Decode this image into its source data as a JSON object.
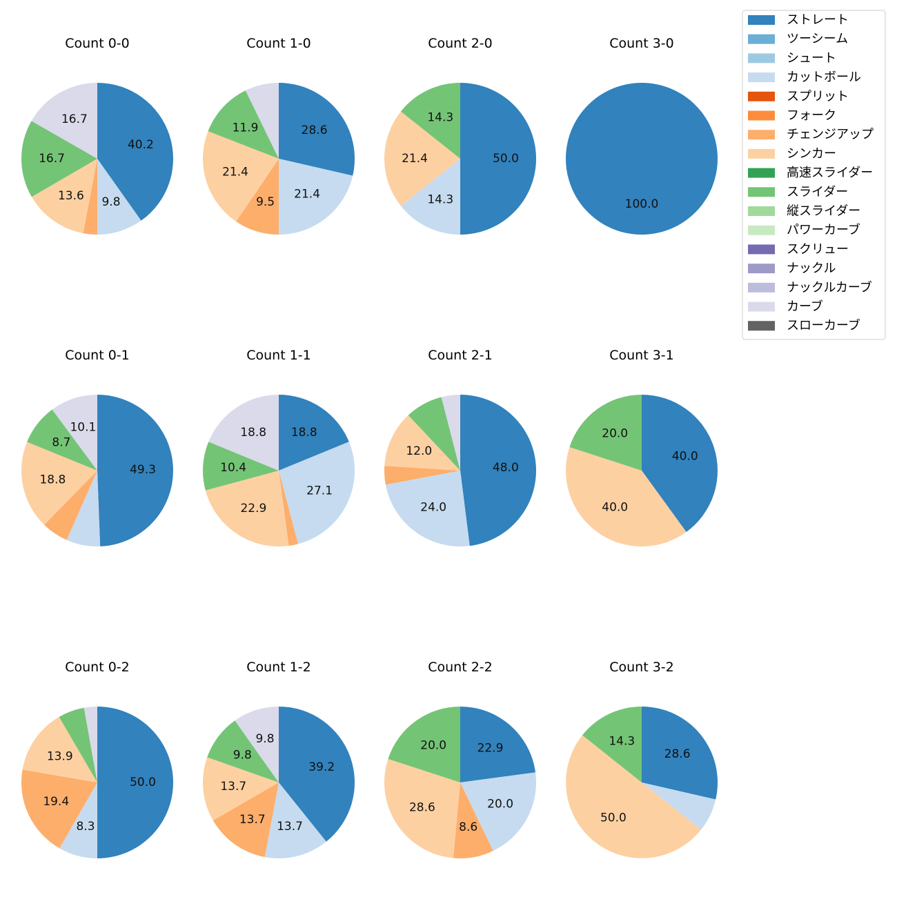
{
  "chart_data": {
    "type": "pie",
    "legend": {
      "placement": "top-right",
      "entries": [
        {
          "name": "ストレート",
          "color": "#3182bd"
        },
        {
          "name": "ツーシーム",
          "color": "#6baed6"
        },
        {
          "name": "シュート",
          "color": "#9ecae1"
        },
        {
          "name": "カットボール",
          "color": "#c6dbef"
        },
        {
          "name": "スプリット",
          "color": "#e6550d"
        },
        {
          "name": "フォーク",
          "color": "#fd8d3c"
        },
        {
          "name": "チェンジアップ",
          "color": "#fdae6b"
        },
        {
          "name": "シンカー",
          "color": "#fdd0a2"
        },
        {
          "name": "高速スライダー",
          "color": "#31a354"
        },
        {
          "name": "スライダー",
          "color": "#74c476"
        },
        {
          "name": "縦スライダー",
          "color": "#a1d99b"
        },
        {
          "name": "パワーカーブ",
          "color": "#c7e9c0"
        },
        {
          "name": "スクリュー",
          "color": "#756bb1"
        },
        {
          "name": "ナックル",
          "color": "#9e9ac8"
        },
        {
          "name": "ナックルカーブ",
          "color": "#bcbddc"
        },
        {
          "name": "カーブ",
          "color": "#dadaeb"
        },
        {
          "name": "スローカーブ",
          "color": "#636363"
        }
      ]
    },
    "pies": [
      {
        "title": "Count 0-0",
        "slices": [
          {
            "pitch": "ストレート",
            "value": 40.2,
            "label": "40.2"
          },
          {
            "pitch": "カットボール",
            "value": 9.8,
            "label": "9.8"
          },
          {
            "pitch": "チェンジアップ",
            "value": 3.0,
            "label": ""
          },
          {
            "pitch": "シンカー",
            "value": 13.6,
            "label": "13.6"
          },
          {
            "pitch": "スライダー",
            "value": 16.7,
            "label": "16.7"
          },
          {
            "pitch": "カーブ",
            "value": 16.7,
            "label": "16.7"
          }
        ]
      },
      {
        "title": "Count 1-0",
        "slices": [
          {
            "pitch": "ストレート",
            "value": 28.6,
            "label": "28.6"
          },
          {
            "pitch": "カットボール",
            "value": 21.4,
            "label": "21.4"
          },
          {
            "pitch": "チェンジアップ",
            "value": 9.5,
            "label": "9.5"
          },
          {
            "pitch": "シンカー",
            "value": 21.4,
            "label": "21.4"
          },
          {
            "pitch": "スライダー",
            "value": 11.9,
            "label": "11.9"
          },
          {
            "pitch": "カーブ",
            "value": 7.2,
            "label": ""
          }
        ]
      },
      {
        "title": "Count 2-0",
        "slices": [
          {
            "pitch": "ストレート",
            "value": 50.0,
            "label": "50.0"
          },
          {
            "pitch": "カットボール",
            "value": 14.3,
            "label": "14.3"
          },
          {
            "pitch": "シンカー",
            "value": 21.4,
            "label": "21.4"
          },
          {
            "pitch": "スライダー",
            "value": 14.3,
            "label": "14.3"
          }
        ]
      },
      {
        "title": "Count 3-0",
        "slices": [
          {
            "pitch": "ストレート",
            "value": 100.0,
            "label": "100.0"
          }
        ]
      },
      {
        "title": "Count 0-1",
        "slices": [
          {
            "pitch": "ストレート",
            "value": 49.3,
            "label": "49.3"
          },
          {
            "pitch": "カットボール",
            "value": 7.2,
            "label": ""
          },
          {
            "pitch": "チェンジアップ",
            "value": 5.7,
            "label": ""
          },
          {
            "pitch": "シンカー",
            "value": 18.8,
            "label": "18.8"
          },
          {
            "pitch": "スライダー",
            "value": 8.7,
            "label": "8.7"
          },
          {
            "pitch": "カーブ",
            "value": 10.1,
            "label": "10.1"
          }
        ]
      },
      {
        "title": "Count 1-1",
        "slices": [
          {
            "pitch": "ストレート",
            "value": 18.8,
            "label": "18.8"
          },
          {
            "pitch": "カットボール",
            "value": 27.1,
            "label": "27.1"
          },
          {
            "pitch": "チェンジアップ",
            "value": 2.0,
            "label": ""
          },
          {
            "pitch": "シンカー",
            "value": 22.9,
            "label": "22.9"
          },
          {
            "pitch": "スライダー",
            "value": 10.4,
            "label": "10.4"
          },
          {
            "pitch": "カーブ",
            "value": 18.8,
            "label": "18.8"
          }
        ]
      },
      {
        "title": "Count 2-1",
        "slices": [
          {
            "pitch": "ストレート",
            "value": 48.0,
            "label": "48.0"
          },
          {
            "pitch": "カットボール",
            "value": 24.0,
            "label": "24.0"
          },
          {
            "pitch": "チェンジアップ",
            "value": 4.0,
            "label": ""
          },
          {
            "pitch": "シンカー",
            "value": 12.0,
            "label": "12.0"
          },
          {
            "pitch": "スライダー",
            "value": 8.0,
            "label": ""
          },
          {
            "pitch": "カーブ",
            "value": 4.0,
            "label": ""
          }
        ]
      },
      {
        "title": "Count 3-1",
        "slices": [
          {
            "pitch": "ストレート",
            "value": 40.0,
            "label": "40.0"
          },
          {
            "pitch": "シンカー",
            "value": 40.0,
            "label": "40.0"
          },
          {
            "pitch": "スライダー",
            "value": 20.0,
            "label": "20.0"
          }
        ]
      },
      {
        "title": "Count 0-2",
        "slices": [
          {
            "pitch": "ストレート",
            "value": 50.0,
            "label": "50.0"
          },
          {
            "pitch": "カットボール",
            "value": 8.3,
            "label": "8.3"
          },
          {
            "pitch": "チェンジアップ",
            "value": 19.4,
            "label": "19.4"
          },
          {
            "pitch": "シンカー",
            "value": 13.9,
            "label": "13.9"
          },
          {
            "pitch": "スライダー",
            "value": 5.6,
            "label": ""
          },
          {
            "pitch": "カーブ",
            "value": 2.8,
            "label": ""
          }
        ]
      },
      {
        "title": "Count 1-2",
        "slices": [
          {
            "pitch": "ストレート",
            "value": 39.2,
            "label": "39.2"
          },
          {
            "pitch": "カットボール",
            "value": 13.7,
            "label": "13.7"
          },
          {
            "pitch": "チェンジアップ",
            "value": 13.7,
            "label": "13.7"
          },
          {
            "pitch": "シンカー",
            "value": 13.7,
            "label": "13.7"
          },
          {
            "pitch": "スライダー",
            "value": 9.8,
            "label": "9.8"
          },
          {
            "pitch": "カーブ",
            "value": 9.8,
            "label": "9.8"
          }
        ]
      },
      {
        "title": "Count 2-2",
        "slices": [
          {
            "pitch": "ストレート",
            "value": 22.9,
            "label": "22.9"
          },
          {
            "pitch": "カットボール",
            "value": 20.0,
            "label": "20.0"
          },
          {
            "pitch": "チェンジアップ",
            "value": 8.6,
            "label": "8.6"
          },
          {
            "pitch": "シンカー",
            "value": 28.6,
            "label": "28.6"
          },
          {
            "pitch": "スライダー",
            "value": 20.0,
            "label": "20.0"
          }
        ]
      },
      {
        "title": "Count 3-2",
        "slices": [
          {
            "pitch": "ストレート",
            "value": 28.6,
            "label": "28.6"
          },
          {
            "pitch": "カットボール",
            "value": 7.1,
            "label": ""
          },
          {
            "pitch": "シンカー",
            "value": 50.0,
            "label": "50.0"
          },
          {
            "pitch": "スライダー",
            "value": 14.3,
            "label": "14.3"
          }
        ]
      }
    ]
  }
}
